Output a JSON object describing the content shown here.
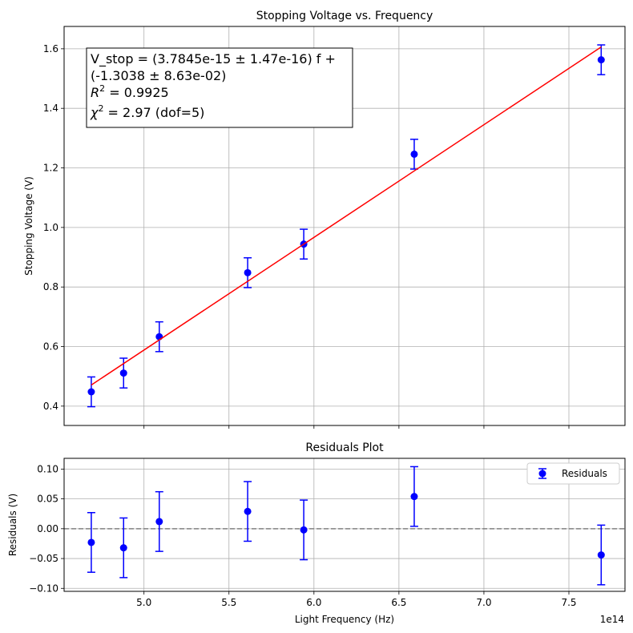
{
  "chart_data": [
    {
      "type": "scatter",
      "title": "Stopping Voltage vs. Frequency",
      "xlabel": "",
      "ylabel": "Stopping Voltage (V)",
      "x_multiplier_label": "1e14",
      "xlim": [
        4.53,
        7.83
      ],
      "ylim": [
        0.335,
        1.675
      ],
      "xticks": [
        5.0,
        5.5,
        6.0,
        6.5,
        7.0,
        7.5
      ],
      "yticks": [
        0.4,
        0.6,
        0.8,
        1.0,
        1.2,
        1.4,
        1.6
      ],
      "ytick_labels": [
        "0.4",
        "0.6",
        "0.8",
        "1.0",
        "1.2",
        "1.4",
        "1.6"
      ],
      "grid": true,
      "series": [
        {
          "kind": "errorbar",
          "color": "#0000ff",
          "x": [
            4.69,
            4.88,
            5.09,
            5.61,
            5.94,
            6.59,
            7.69
          ],
          "y": [
            0.448,
            0.511,
            0.633,
            0.848,
            0.944,
            1.246,
            1.563
          ],
          "yerr": [
            0.05,
            0.05,
            0.05,
            0.05,
            0.05,
            0.05,
            0.05
          ]
        },
        {
          "kind": "fit-line",
          "color": "#ff0000",
          "x": [
            4.69,
            7.69
          ],
          "y": [
            0.471,
            1.606
          ]
        }
      ],
      "annotation": {
        "line1": "V_stop = (3.7845e-15 ± 1.47e-16) f +",
        "line2": "(-1.3038 ± 8.63e-02)",
        "r2_symbol": "R",
        "r2_exp": "2",
        "r2_value": " = 0.9925",
        "chi_symbol": "χ",
        "chi_exp": "2",
        "chi_value": " = 2.97 (dof=5)"
      }
    },
    {
      "type": "scatter",
      "title": "Residuals Plot",
      "xlabel": "Light Frequency (Hz)",
      "ylabel": "Residuals (V)",
      "x_multiplier_label": "1e14",
      "xlim": [
        4.53,
        7.83
      ],
      "ylim": [
        -0.105,
        0.118
      ],
      "xticks": [
        5.0,
        5.5,
        6.0,
        6.5,
        7.0,
        7.5
      ],
      "xtick_labels": [
        "5.0",
        "5.5",
        "6.0",
        "6.5",
        "7.0",
        "7.5"
      ],
      "yticks": [
        -0.1,
        -0.05,
        0.0,
        0.05,
        0.1
      ],
      "ytick_labels": [
        "−0.10",
        "−0.05",
        "0.00",
        "0.05",
        "0.10"
      ],
      "grid": true,
      "zero_line": true,
      "legend": {
        "position": "top-right",
        "label": "Residuals"
      },
      "series": [
        {
          "name": "Residuals",
          "kind": "errorbar",
          "color": "#0000ff",
          "x": [
            4.69,
            4.88,
            5.09,
            5.61,
            5.94,
            6.59,
            7.69
          ],
          "y": [
            -0.023,
            -0.032,
            0.012,
            0.029,
            -0.002,
            0.054,
            -0.044
          ],
          "yerr": [
            0.05,
            0.05,
            0.05,
            0.05,
            0.05,
            0.05,
            0.05
          ]
        }
      ]
    }
  ]
}
